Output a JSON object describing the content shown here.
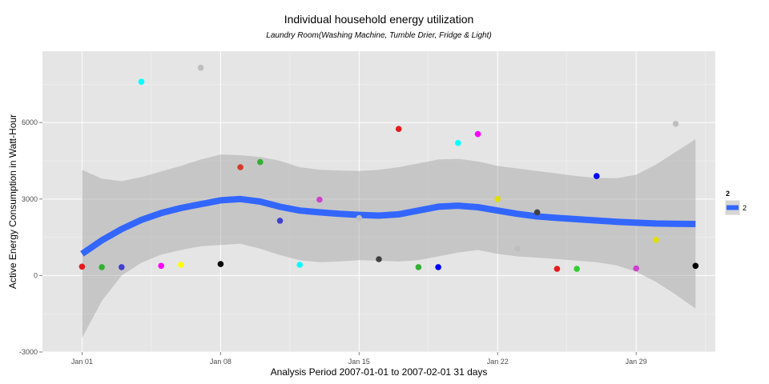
{
  "chart_data": {
    "type": "scatter",
    "title": "Individual household energy utilization",
    "subtitle": "Laundry Room(Washing Machine, Tumble Drier, Fridge & Light)",
    "xlabel": "Analysis Period  2007-01-01  to  2007-02-01   31 days",
    "ylabel": "Active Energy Consumption in Watt-Hour",
    "xlim": [
      "2006-12-30",
      "2007-02-02"
    ],
    "ylim": [
      -3000,
      8800
    ],
    "x_ticks": [
      {
        "date": "2007-01-01",
        "label": "Jan 01"
      },
      {
        "date": "2007-01-08",
        "label": "Jan 08"
      },
      {
        "date": "2007-01-15",
        "label": "Jan 15"
      },
      {
        "date": "2007-01-22",
        "label": "Jan 22"
      },
      {
        "date": "2007-01-29",
        "label": "Jan 29"
      }
    ],
    "y_ticks": [
      -3000,
      0,
      3000,
      6000
    ],
    "grid": true,
    "points": [
      {
        "date": "2007-01-01",
        "y": 350,
        "color": "#e41a1c"
      },
      {
        "date": "2007-01-02",
        "y": 330,
        "color": "#33b033"
      },
      {
        "date": "2007-01-03",
        "y": 330,
        "color": "#4040d0"
      },
      {
        "date": "2007-01-04",
        "y": 7600,
        "color": "#00ffff"
      },
      {
        "date": "2007-01-05",
        "y": 380,
        "color": "#ff00ff"
      },
      {
        "date": "2007-01-06",
        "y": 420,
        "color": "#ffff00"
      },
      {
        "date": "2007-01-07",
        "y": 8150,
        "color": "#bebebe"
      },
      {
        "date": "2007-01-08",
        "y": 450,
        "color": "#000000"
      },
      {
        "date": "2007-01-09",
        "y": 4250,
        "color": "#d43a2a"
      },
      {
        "date": "2007-01-10",
        "y": 4450,
        "color": "#33b033"
      },
      {
        "date": "2007-01-11",
        "y": 2150,
        "color": "#4040d0"
      },
      {
        "date": "2007-01-12",
        "y": 420,
        "color": "#00ffff"
      },
      {
        "date": "2007-01-13",
        "y": 2980,
        "color": "#d040d0"
      },
      {
        "date": "2007-01-15",
        "y": 2250,
        "color": "#bebebe"
      },
      {
        "date": "2007-01-16",
        "y": 640,
        "color": "#404040"
      },
      {
        "date": "2007-01-17",
        "y": 5750,
        "color": "#e41a1c"
      },
      {
        "date": "2007-01-18",
        "y": 330,
        "color": "#33b033"
      },
      {
        "date": "2007-01-19",
        "y": 330,
        "color": "#0000ff"
      },
      {
        "date": "2007-01-20",
        "y": 5200,
        "color": "#00ffff"
      },
      {
        "date": "2007-01-21",
        "y": 5550,
        "color": "#ff00ff"
      },
      {
        "date": "2007-01-22",
        "y": 3000,
        "color": "#e0e000"
      },
      {
        "date": "2007-01-23",
        "y": 1050,
        "color": "#bebebe"
      },
      {
        "date": "2007-01-24",
        "y": 2480,
        "color": "#404040"
      },
      {
        "date": "2007-01-25",
        "y": 260,
        "color": "#e41a1c"
      },
      {
        "date": "2007-01-26",
        "y": 260,
        "color": "#33cc33"
      },
      {
        "date": "2007-01-27",
        "y": 3900,
        "color": "#0000ff"
      },
      {
        "date": "2007-01-29",
        "y": 280,
        "color": "#d040d0"
      },
      {
        "date": "2007-01-30",
        "y": 1400,
        "color": "#e0e000"
      },
      {
        "date": "2007-01-31",
        "y": 5950,
        "color": "#bebebe"
      },
      {
        "date": "2007-02-01",
        "y": 380,
        "color": "#000000"
      }
    ],
    "smooth": {
      "name": "2",
      "color": "#3366ff",
      "band_color": "#999999",
      "points": [
        {
          "date": "2007-01-01",
          "y": 850,
          "lo": -2450,
          "hi": 4150
        },
        {
          "date": "2007-01-02",
          "y": 1380,
          "lo": -1000,
          "hi": 3800
        },
        {
          "date": "2007-01-03",
          "y": 1820,
          "lo": 0,
          "hi": 3700
        },
        {
          "date": "2007-01-04",
          "y": 2180,
          "lo": 500,
          "hi": 3860
        },
        {
          "date": "2007-01-05",
          "y": 2450,
          "lo": 820,
          "hi": 4080
        },
        {
          "date": "2007-01-06",
          "y": 2650,
          "lo": 1000,
          "hi": 4300
        },
        {
          "date": "2007-01-07",
          "y": 2800,
          "lo": 1150,
          "hi": 4550
        },
        {
          "date": "2007-01-08",
          "y": 2950,
          "lo": 1200,
          "hi": 4750
        },
        {
          "date": "2007-01-09",
          "y": 3000,
          "lo": 1250,
          "hi": 4720
        },
        {
          "date": "2007-01-10",
          "y": 2900,
          "lo": 1050,
          "hi": 4650
        },
        {
          "date": "2007-01-11",
          "y": 2700,
          "lo": 800,
          "hi": 4500
        },
        {
          "date": "2007-01-12",
          "y": 2550,
          "lo": 600,
          "hi": 4250
        },
        {
          "date": "2007-01-13",
          "y": 2480,
          "lo": 520,
          "hi": 4150
        },
        {
          "date": "2007-01-14",
          "y": 2420,
          "lo": 550,
          "hi": 4120
        },
        {
          "date": "2007-01-15",
          "y": 2380,
          "lo": 600,
          "hi": 4100
        },
        {
          "date": "2007-01-16",
          "y": 2350,
          "lo": 580,
          "hi": 4150
        },
        {
          "date": "2007-01-17",
          "y": 2400,
          "lo": 550,
          "hi": 4250
        },
        {
          "date": "2007-01-18",
          "y": 2550,
          "lo": 600,
          "hi": 4400
        },
        {
          "date": "2007-01-19",
          "y": 2700,
          "lo": 750,
          "hi": 4550
        },
        {
          "date": "2007-01-20",
          "y": 2740,
          "lo": 900,
          "hi": 4580
        },
        {
          "date": "2007-01-21",
          "y": 2680,
          "lo": 1000,
          "hi": 4480
        },
        {
          "date": "2007-01-22",
          "y": 2550,
          "lo": 850,
          "hi": 4300
        },
        {
          "date": "2007-01-23",
          "y": 2420,
          "lo": 750,
          "hi": 4200
        },
        {
          "date": "2007-01-24",
          "y": 2320,
          "lo": 700,
          "hi": 4100
        },
        {
          "date": "2007-01-25",
          "y": 2260,
          "lo": 650,
          "hi": 4000
        },
        {
          "date": "2007-01-26",
          "y": 2210,
          "lo": 580,
          "hi": 3900
        },
        {
          "date": "2007-01-27",
          "y": 2160,
          "lo": 520,
          "hi": 3830
        },
        {
          "date": "2007-01-28",
          "y": 2110,
          "lo": 400,
          "hi": 3820
        },
        {
          "date": "2007-01-29",
          "y": 2070,
          "lo": 150,
          "hi": 3950
        },
        {
          "date": "2007-01-30",
          "y": 2040,
          "lo": -250,
          "hi": 4350
        },
        {
          "date": "2007-01-31",
          "y": 2030,
          "lo": -750,
          "hi": 4850
        },
        {
          "date": "2007-02-01",
          "y": 2020,
          "lo": -1300,
          "hi": 5350
        }
      ]
    },
    "legend": {
      "title": "2",
      "entries": [
        "2"
      ],
      "position": "right"
    }
  }
}
